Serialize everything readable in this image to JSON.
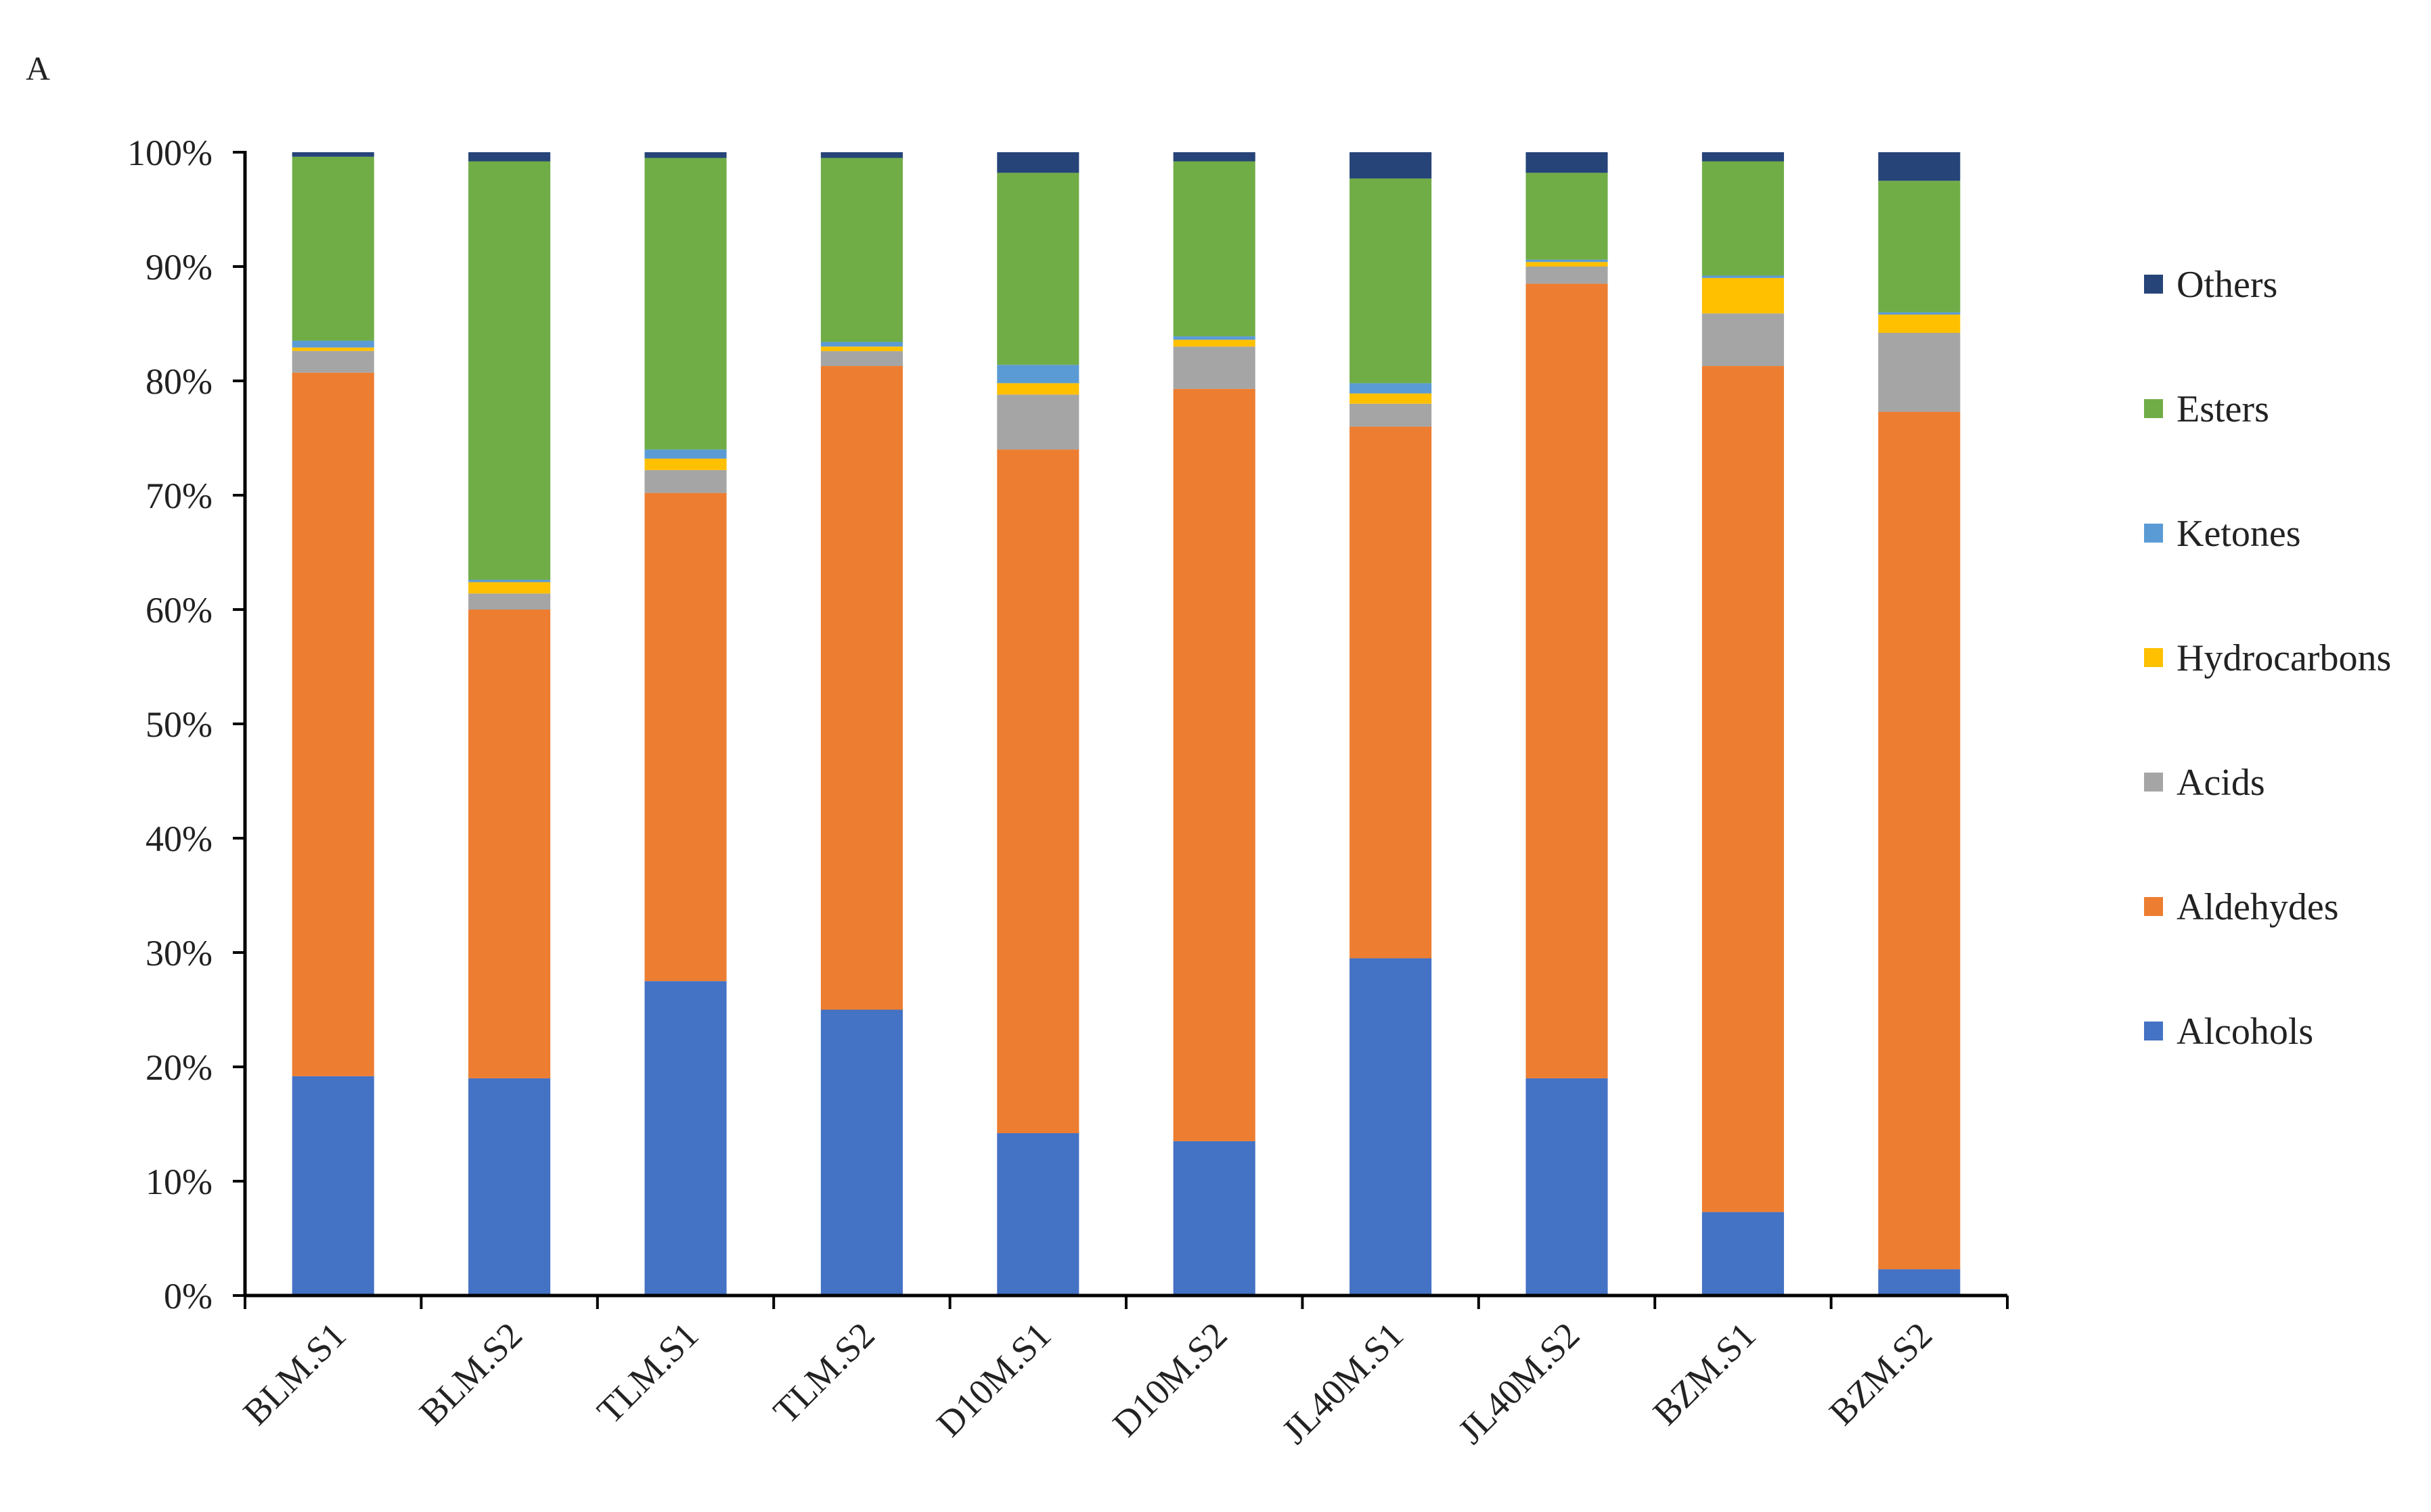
{
  "panel_label": "A",
  "chart_data": {
    "type": "bar",
    "stacked": "percent",
    "categories": [
      "BLM.S1",
      "BLM.S2",
      "TLM.S1",
      "TLM.S2",
      "D10M.S1",
      "D10M.S2",
      "JL40M.S1",
      "JL40M.S2",
      "BZM.S1",
      "BZM.S2"
    ],
    "ylim": [
      0,
      100
    ],
    "yticks": [
      "0%",
      "10%",
      "20%",
      "30%",
      "40%",
      "50%",
      "60%",
      "70%",
      "80%",
      "90%",
      "100%"
    ],
    "grid": false,
    "legend_position": "right",
    "legend_order": [
      "Others",
      "Esters",
      "Ketones",
      "Hydrocarbons",
      "Acids",
      "Aldehydes",
      "Alcohols"
    ],
    "series": [
      {
        "name": "Alcohols",
        "color": "#4472C4",
        "values": [
          19.2,
          19.0,
          27.5,
          25.0,
          14.2,
          13.5,
          29.5,
          19.0,
          7.3,
          2.3
        ]
      },
      {
        "name": "Aldehydes",
        "color": "#ED7D31",
        "values": [
          61.6,
          41.0,
          42.7,
          56.3,
          59.8,
          65.8,
          46.5,
          69.5,
          74.0,
          75.0
        ]
      },
      {
        "name": "Acids",
        "color": "#A5A5A5",
        "values": [
          1.9,
          1.4,
          2.0,
          1.3,
          4.8,
          3.7,
          2.0,
          1.5,
          4.6,
          6.9
        ]
      },
      {
        "name": "Hydrocarbons",
        "color": "#FFC000",
        "values": [
          0.3,
          1.0,
          1.0,
          0.4,
          1.0,
          0.6,
          0.9,
          0.4,
          3.1,
          1.6
        ]
      },
      {
        "name": "Ketones",
        "color": "#5B9BD5",
        "values": [
          0.6,
          0.2,
          0.8,
          0.4,
          1.6,
          0.3,
          0.9,
          0.2,
          0.2,
          0.2
        ]
      },
      {
        "name": "Esters",
        "color": "#70AD47",
        "values": [
          16.1,
          36.6,
          25.5,
          16.1,
          16.8,
          15.3,
          17.9,
          7.6,
          10.0,
          11.5
        ]
      },
      {
        "name": "Others",
        "color": "#264478",
        "values": [
          0.4,
          0.8,
          0.5,
          0.5,
          1.8,
          0.8,
          2.3,
          1.8,
          0.8,
          2.5
        ]
      }
    ]
  }
}
